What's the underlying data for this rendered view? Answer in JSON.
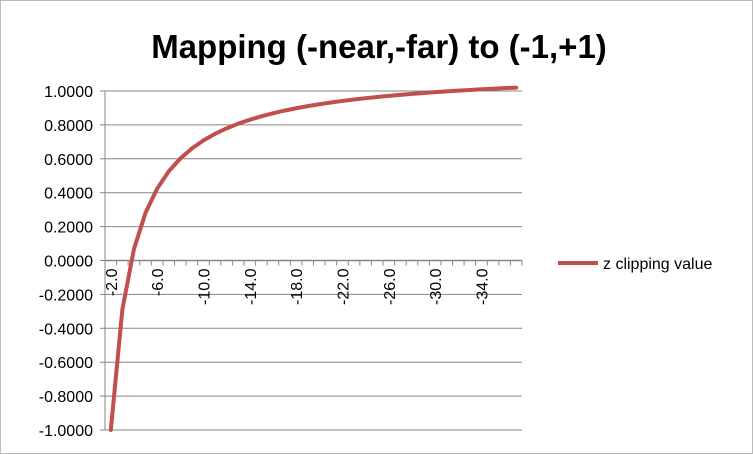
{
  "chart_data": {
    "type": "line",
    "title": "Mapping (-near,-far) to (-1,+1)",
    "xlabel": "",
    "ylabel": "",
    "series": [
      {
        "name": "z clipping value",
        "color": "#c0504d",
        "x": [
          -2,
          -3,
          -4,
          -5,
          -6,
          -7,
          -8,
          -9,
          -10,
          -11,
          -12,
          -13,
          -14,
          -15,
          -16,
          -17,
          -18,
          -19,
          -20,
          -21,
          -22,
          -23,
          -24,
          -25,
          -26,
          -27,
          -28,
          -29,
          -30,
          -31,
          -32,
          -33,
          -34,
          -35,
          -36,
          -37
        ],
        "values": [
          -1.0,
          -0.2881,
          0.0678,
          0.2814,
          0.4237,
          0.5254,
          0.6017,
          0.661,
          0.7085,
          0.7473,
          0.7797,
          0.8071,
          0.8305,
          0.8508,
          0.8686,
          0.8843,
          0.8983,
          0.9108,
          0.922,
          0.9322,
          0.9414,
          0.9499,
          0.9576,
          0.9647,
          0.9713,
          0.9774,
          0.9831,
          0.9883,
          0.9932,
          0.9978,
          1.0021,
          1.0062,
          1.01,
          1.0136,
          1.017,
          1.0202
        ]
      }
    ],
    "x_tick_labels": [
      "-2.0",
      "-6.0",
      "-10.0",
      "-14.0",
      "-18.0",
      "-22.0",
      "-26.0",
      "-30.0",
      "-34.0"
    ],
    "y_tick_labels": [
      "1.0000",
      "0.8000",
      "0.6000",
      "0.4000",
      "0.2000",
      "0.0000",
      "-0.2000",
      "-0.4000",
      "-0.6000",
      "-0.8000",
      "-1.0000"
    ],
    "ylim": [
      -1.0,
      1.0
    ],
    "grid": true,
    "legend_position": "right"
  },
  "colors": {
    "series": "#c0504d",
    "grid": "#868686",
    "axis": "#868686",
    "text": "#000000"
  }
}
